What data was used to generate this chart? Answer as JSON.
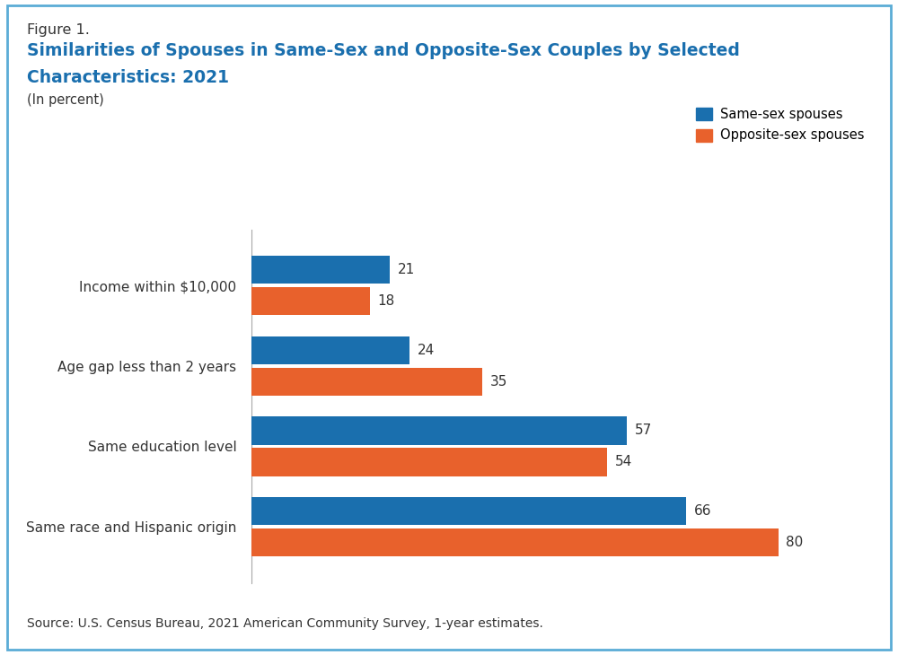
{
  "figure_label": "Figure 1.",
  "title_line1": "Similarities of Spouses in Same-Sex and Opposite-Sex Couples by Selected",
  "title_line2": "Characteristics: 2021",
  "subtitle": "(In percent)",
  "source": "Source: U.S. Census Bureau, 2021 American Community Survey, 1-year estimates.",
  "categories": [
    "Same race and Hispanic origin",
    "Same education level",
    "Age gap less than 2 years",
    "Income within $10,000"
  ],
  "same_sex_values": [
    66,
    57,
    24,
    21
  ],
  "opposite_sex_values": [
    80,
    54,
    35,
    18
  ],
  "same_sex_color": "#1A6FAE",
  "opposite_sex_color": "#E8612C",
  "legend_labels": [
    "Same-sex spouses",
    "Opposite-sex spouses"
  ],
  "xlim": [
    0,
    90
  ],
  "bar_height": 0.35,
  "label_fontsize": 11,
  "value_fontsize": 11,
  "title_color": "#1A6FAE",
  "figure_label_color": "#333333",
  "border_color": "#5BACD6",
  "background_color": "#FFFFFF",
  "text_color": "#333333"
}
